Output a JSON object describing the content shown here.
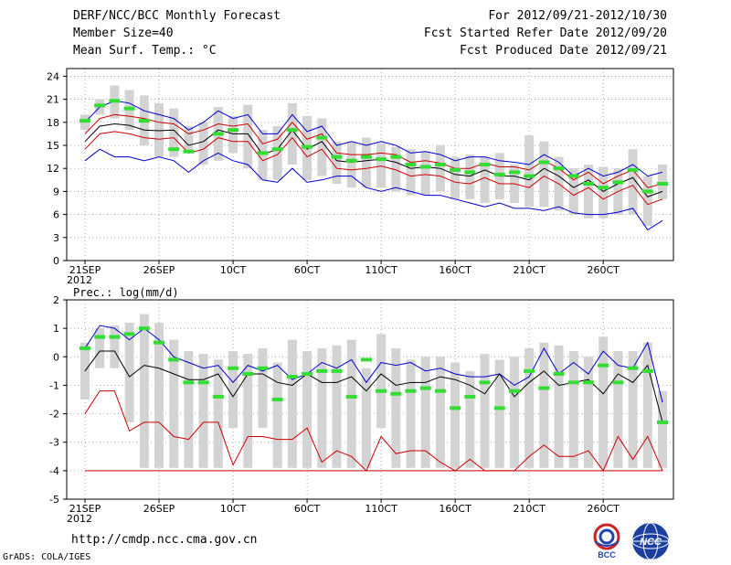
{
  "header": {
    "title": "DERF/NCC/BCC Monthly Forecast",
    "member_size": "Member Size=40",
    "variable": "Mean Surf. Temp.: °C",
    "period": "For 2012/09/21-2012/10/30",
    "started": "Fcst Started Refer Date 2012/09/20",
    "produced": "Fcst Produced Date 2012/09/21"
  },
  "footer": {
    "url": "http://cmdp.ncc.cma.gov.cn",
    "credit": "GrADS: COLA/IGES",
    "logo_left_text": "BCC",
    "logo_right_text": "NCC"
  },
  "colors": {
    "ensemble_bar": "#d3d3d3",
    "max_line": "#0000cc",
    "min_line": "#cc0000",
    "mean_line": "#000000",
    "control_marker": "#33dd33"
  },
  "chart_data": [
    {
      "type": "line",
      "title": "Mean Surf. Temp.: °C",
      "ylim": [
        0,
        25
      ],
      "yticks": [
        0,
        3,
        6,
        9,
        12,
        15,
        18,
        21,
        24
      ],
      "xtick_labels": [
        "21SEP\n2012",
        "26SEP",
        "10CT",
        "60CT",
        "110CT",
        "160CT",
        "210CT",
        "260CT"
      ],
      "xtick_index": [
        0,
        5,
        10,
        15,
        20,
        25,
        30,
        35
      ],
      "n_days": 40,
      "series": [
        {
          "name": "max",
          "values": [
            13,
            14.5,
            13.5,
            13.5,
            13,
            13.5,
            13,
            11.5,
            13,
            14,
            13,
            12.5,
            10.5,
            10.2,
            12,
            10.2,
            10.5,
            11,
            11,
            9.5,
            9,
            9.5,
            9,
            8.5,
            8.5,
            8,
            7.5,
            7,
            7.5,
            6.8,
            6.8,
            6.5,
            7,
            6.2,
            6,
            6,
            6.3,
            6.8,
            4,
            5.2
          ]
        },
        {
          "name": "mean_upper",
          "values": [
            16.5,
            18.5,
            19,
            18.8,
            18.5,
            18,
            17.8,
            16.5,
            17,
            17.8,
            17.5,
            17.8,
            15.2,
            15.8,
            18,
            15.8,
            16.5,
            14,
            13.8,
            13.8,
            14,
            13.8,
            12.8,
            13,
            12.7,
            12,
            12,
            12.7,
            12.2,
            12.2,
            11.8,
            13,
            12,
            10.5,
            11.5,
            10,
            11,
            11.8,
            9.5,
            10
          ]
        },
        {
          "name": "mean",
          "values": [
            15.5,
            17.5,
            17.8,
            17.6,
            17,
            16.9,
            17,
            15,
            15.5,
            17,
            16.5,
            16.5,
            13.8,
            14.5,
            17,
            14.5,
            15.5,
            13,
            12.8,
            13,
            13.2,
            12.8,
            12,
            12.2,
            12,
            11.2,
            11,
            11.8,
            11,
            11,
            10.5,
            12,
            11,
            9.5,
            10.5,
            9,
            10,
            10.8,
            8.3,
            9
          ]
        },
        {
          "name": "mean_lower",
          "values": [
            14.5,
            16.5,
            16.8,
            16.5,
            16,
            15.8,
            16,
            14,
            14.5,
            16,
            15.5,
            15.5,
            13,
            13.8,
            16,
            13.5,
            14.5,
            12,
            11.8,
            12,
            12.3,
            11.8,
            11,
            11.2,
            11,
            10.2,
            10,
            10.8,
            10,
            10,
            9.5,
            11,
            10,
            8.5,
            9.5,
            8,
            9,
            9.8,
            7.3,
            8
          ]
        },
        {
          "name": "min",
          "values": [
            18,
            20,
            20.8,
            20.5,
            19.5,
            19,
            18.5,
            17,
            18,
            19.5,
            18.5,
            19,
            16.5,
            16.5,
            19,
            16.8,
            17.5,
            15,
            15.5,
            15,
            15.5,
            15,
            14,
            14.2,
            13.8,
            13,
            13.5,
            13.5,
            13,
            12.8,
            12.5,
            13.8,
            12.8,
            11,
            12,
            11,
            11.5,
            12.5,
            11,
            11.5
          ]
        },
        {
          "name": "control",
          "values": [
            18.2,
            20.2,
            20.8,
            19.8,
            18.2,
            null,
            14.5,
            14.2,
            null,
            16.5,
            17,
            null,
            14,
            14.5,
            17,
            14.8,
            16,
            13.5,
            13,
            13.5,
            13.2,
            13.5,
            12.5,
            12.2,
            12.5,
            11.8,
            11.5,
            12.5,
            11.2,
            11.5,
            11,
            12.8,
            12,
            11,
            10,
            9.5,
            10.2,
            11.8,
            9,
            10
          ]
        },
        {
          "name": "bar_top",
          "values": [
            19,
            21,
            22.8,
            22.2,
            21.5,
            20.5,
            19.8,
            17.5,
            18,
            20,
            18.8,
            20.3,
            17,
            17.5,
            20.5,
            18.8,
            18.5,
            15.5,
            15.5,
            16,
            15.3,
            14.8,
            14.5,
            14.2,
            15,
            13.5,
            13.8,
            13.5,
            14,
            12.5,
            16.3,
            15.5,
            13.5,
            12,
            12.5,
            12.2,
            12,
            14.5,
            11,
            12.5
          ]
        },
        {
          "name": "bar_bottom",
          "values": [
            17,
            19,
            18.5,
            17,
            15,
            13.5,
            13.5,
            14,
            12.5,
            13,
            14,
            12,
            10.5,
            10.5,
            12.5,
            10.5,
            11,
            10,
            9.5,
            9.5,
            9.5,
            9,
            8.5,
            8.5,
            9,
            8,
            8,
            7.5,
            8,
            7.5,
            7,
            7,
            6.5,
            6,
            5.5,
            5.5,
            6,
            6,
            4.5,
            8
          ]
        }
      ]
    },
    {
      "type": "line",
      "title": "Prec.: log(mm/d)",
      "ylim": [
        -5,
        2
      ],
      "yticks": [
        -5,
        -4,
        -3,
        -2,
        -1,
        0,
        1,
        2
      ],
      "xtick_labels": [
        "21SEP\n2012",
        "26SEP",
        "10CT",
        "60CT",
        "110CT",
        "160CT",
        "210CT",
        "260CT"
      ],
      "xtick_index": [
        0,
        5,
        10,
        15,
        20,
        25,
        30,
        35
      ],
      "n_days": 40,
      "series": [
        {
          "name": "max",
          "values": [
            0.3,
            1.1,
            1.0,
            0.6,
            1.0,
            0.6,
            0.0,
            -0.2,
            -0.4,
            -0.3,
            -0.9,
            -0.3,
            -0.5,
            -0.3,
            -0.8,
            -0.6,
            -0.2,
            -0.4,
            -0.1,
            -0.9,
            -0.2,
            -0.3,
            -0.2,
            -0.5,
            -0.4,
            -0.6,
            -0.7,
            -0.7,
            -0.6,
            -1.0,
            -0.7,
            0.3,
            -0.6,
            -0.2,
            -0.6,
            0.2,
            -0.3,
            -0.4,
            0.5,
            -1.6
          ]
        },
        {
          "name": "mean",
          "values": [
            -0.5,
            0.2,
            0.2,
            -0.7,
            -0.3,
            -0.4,
            -0.6,
            -0.8,
            -0.8,
            -0.6,
            -1.4,
            -0.6,
            -0.6,
            -0.9,
            -1.0,
            -0.6,
            -0.9,
            -0.9,
            -0.7,
            -1.2,
            -0.6,
            -1.0,
            -0.9,
            -0.9,
            -0.7,
            -0.8,
            -1.0,
            -1.3,
            -0.6,
            -1.4,
            -0.9,
            -0.5,
            -1.0,
            -0.9,
            -0.8,
            -1.3,
            -0.6,
            -0.9,
            -0.3,
            -2.3
          ]
        },
        {
          "name": "min",
          "values": [
            -2.0,
            -1.2,
            -1.2,
            -2.6,
            -2.3,
            -2.3,
            -2.8,
            -2.9,
            -2.3,
            -2.3,
            -3.8,
            -2.8,
            -2.8,
            -2.9,
            -2.9,
            -2.5,
            -3.7,
            -3.3,
            -3.5,
            -4.0,
            -2.8,
            -3.4,
            -3.3,
            -3.3,
            -3.7,
            -4.0,
            -3.6,
            -4.0,
            -4.0,
            -4.0,
            -3.5,
            -3.1,
            -3.5,
            -3.5,
            -3.3,
            -4.0,
            -2.8,
            -3.6,
            -2.8,
            -4.0
          ]
        },
        {
          "name": "lower_bound",
          "values": [
            -4,
            -4,
            -4,
            -4,
            -4,
            -4,
            -4,
            -4,
            -4,
            -4,
            -4,
            -4,
            -4,
            -4,
            -4,
            -4,
            -4,
            -4,
            -4,
            -4,
            -4,
            -4,
            -4,
            -4,
            -4,
            -4,
            -4,
            -4,
            -4,
            -4,
            -4,
            -4,
            -4,
            -4,
            -4,
            -4,
            -4,
            -4,
            -4,
            -4
          ]
        },
        {
          "name": "control",
          "values": [
            0.3,
            0.7,
            0.7,
            0.8,
            1.0,
            0.5,
            -0.1,
            -0.9,
            -0.9,
            -1.4,
            -0.4,
            -0.6,
            -0.4,
            -1.5,
            -0.7,
            -0.6,
            -0.5,
            -0.5,
            -1.4,
            -0.1,
            -1.2,
            -1.3,
            -1.2,
            -1.1,
            -1.2,
            -1.8,
            -1.4,
            -0.9,
            -1.8,
            -1.2,
            -0.5,
            -1.1,
            -0.6,
            -0.9,
            -0.9,
            -0.3,
            -0.9,
            -0.4,
            -0.5,
            -2.3
          ]
        },
        {
          "name": "bar_top",
          "values": [
            0.5,
            1.0,
            1.1,
            1.2,
            1.5,
            1.2,
            0.6,
            0.2,
            0.1,
            -0.1,
            0.2,
            0.1,
            0.3,
            -0.2,
            0.6,
            0.2,
            0.3,
            0.4,
            0.6,
            -0.4,
            0.8,
            0.3,
            -0.1,
            0.0,
            0.0,
            -0.2,
            -0.5,
            0.1,
            -0.1,
            0.0,
            0.3,
            0.5,
            0.4,
            0.2,
            0.0,
            0.7,
            0.2,
            0.2,
            0.5,
            -1.2
          ]
        },
        {
          "name": "bar_bottom",
          "values": [
            -1.5,
            -0.4,
            -0.4,
            -2.3,
            -3.9,
            -3.9,
            -3.9,
            -3.9,
            -3.9,
            -3.9,
            -2.5,
            -3.9,
            -2.5,
            -3.9,
            -3.9,
            -3.9,
            -3.9,
            -3.9,
            -3.9,
            -3.9,
            -2.5,
            -3.9,
            -3.9,
            -3.9,
            -3.9,
            -3.9,
            -3.9,
            -3.9,
            -3.9,
            -3.9,
            -3.9,
            -3.9,
            -3.9,
            -3.9,
            -3.9,
            -3.9,
            -3.9,
            -3.9,
            -3.9,
            -3.9
          ]
        }
      ]
    }
  ]
}
